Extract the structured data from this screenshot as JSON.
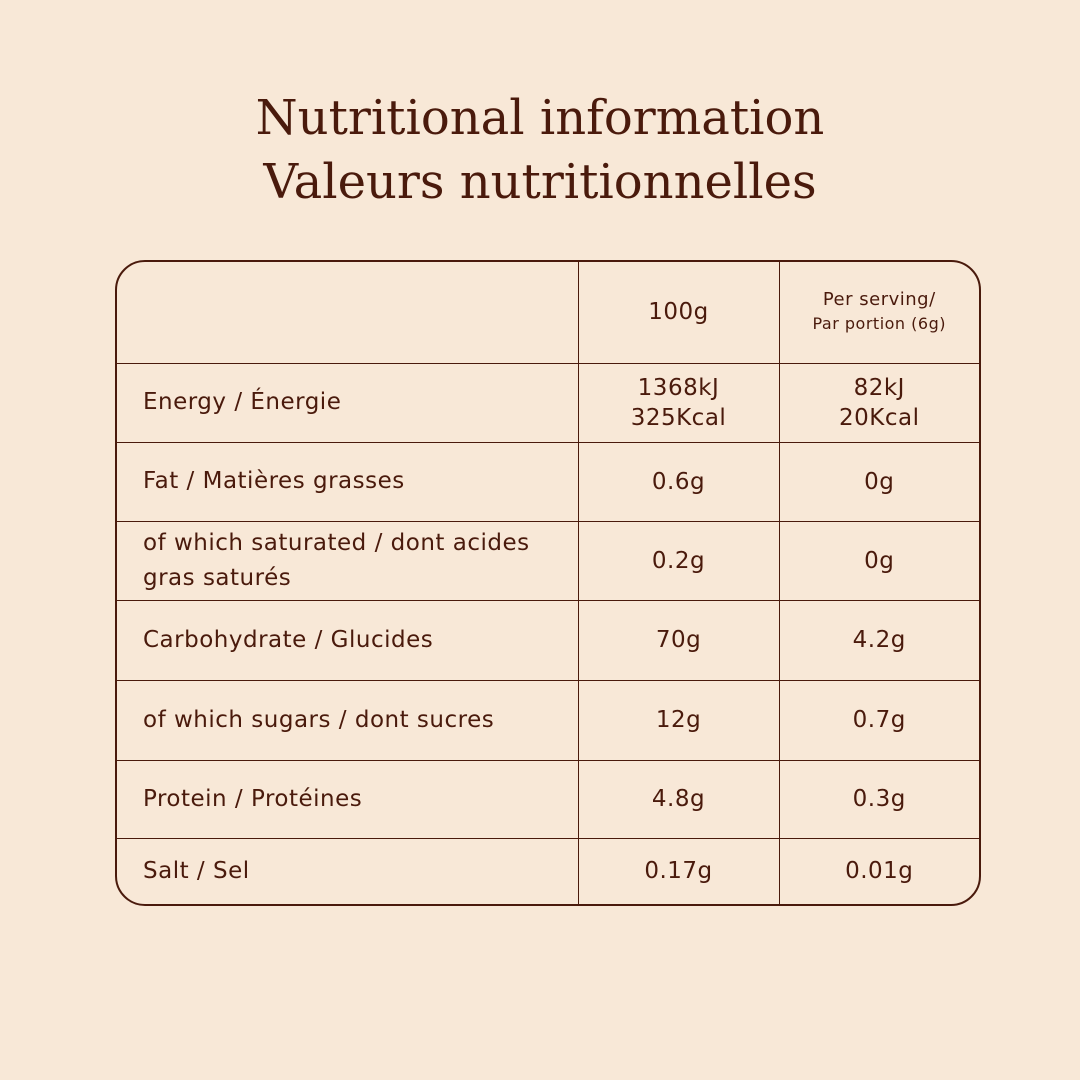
{
  "title": [
    "Nutritional information",
    "Valeurs nutritionnelles"
  ],
  "table": {
    "header": [
      "100g",
      [
        "Per serving/",
        "Par portion (6g)"
      ]
    ],
    "rows": [
      [
        "Energy / Énergie",
        [
          "1368kJ",
          "325Kcal"
        ],
        [
          "82kJ",
          "20Kcal"
        ]
      ],
      [
        "Fat / Matières grasses",
        "0.6g",
        "0g"
      ],
      [
        "of which saturated / dont acides gras saturés",
        "0.2g",
        "0g"
      ],
      [
        "Carbohydrate / Glucides",
        "70g",
        "4.2g"
      ],
      [
        "of which sugars / dont sucres",
        "12g",
        "0.7g"
      ],
      [
        "Protein / Protéines",
        "4.8g",
        "0.3g"
      ],
      [
        "Salt / Sel",
        "0.17g",
        "0.01g"
      ]
    ]
  }
}
